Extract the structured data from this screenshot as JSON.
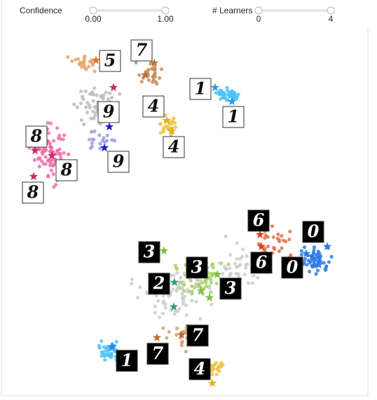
{
  "controls": [
    {
      "label": "Confidence",
      "min_label": "0.00",
      "max_label": "1.00"
    },
    {
      "label": "# Learners",
      "min_label": "0",
      "max_label": "4"
    }
  ],
  "thumbnails": [
    {
      "digit": "5",
      "style": "light"
    },
    {
      "digit": "7",
      "style": "light"
    },
    {
      "digit": "1",
      "style": "light"
    },
    {
      "digit": "1",
      "style": "light"
    },
    {
      "digit": "9",
      "style": "light"
    },
    {
      "digit": "4",
      "style": "light"
    },
    {
      "digit": "4",
      "style": "light"
    },
    {
      "digit": "9",
      "style": "light"
    },
    {
      "digit": "8",
      "style": "light"
    },
    {
      "digit": "8",
      "style": "light"
    },
    {
      "digit": "8",
      "style": "light"
    },
    {
      "digit": "6",
      "style": "dark"
    },
    {
      "digit": "0",
      "style": "dark"
    },
    {
      "digit": "3",
      "style": "dark"
    },
    {
      "digit": "3",
      "style": "dark"
    },
    {
      "digit": "6",
      "style": "dark"
    },
    {
      "digit": "0",
      "style": "dark"
    },
    {
      "digit": "2",
      "style": "dark"
    },
    {
      "digit": "3",
      "style": "dark"
    },
    {
      "digit": "7",
      "style": "dark"
    },
    {
      "digit": "7",
      "style": "dark"
    },
    {
      "digit": "1",
      "style": "dark"
    },
    {
      "digit": "4",
      "style": "dark"
    }
  ]
}
